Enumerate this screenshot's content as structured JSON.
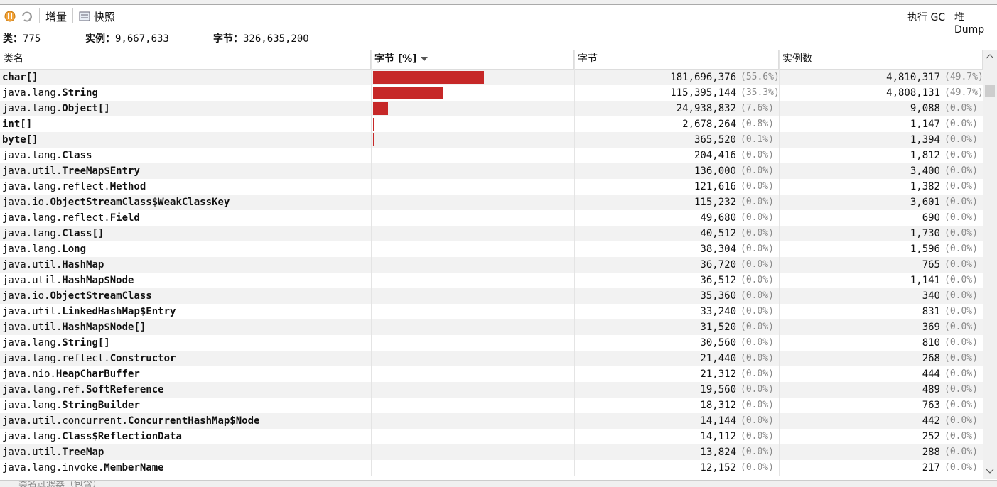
{
  "toolbar": {
    "delta": "增量",
    "snapshot": "快照",
    "gc": "执行 GC",
    "heap_dump": "堆 Dump"
  },
  "stats": {
    "classes_label": "类：",
    "classes": "775",
    "instances_label": "实例：",
    "instances": "9,667,633",
    "bytes_label": "字节：",
    "bytes": "326,635,200"
  },
  "table": {
    "headers": {
      "name": "类名",
      "bar": "字节 [%]",
      "bytes": "字节",
      "instances": "实例数"
    },
    "rows": [
      {
        "cls": "char[]",
        "bytes": "181,696,376",
        "pct": {
          "value": 55.6,
          "label": "(55.6%)"
        },
        "inst": "4,810,317",
        "inst_pct": "(49.7%)"
      },
      {
        "pkg": "java.lang.",
        "cls": "String",
        "bytes": "115,395,144",
        "pct": {
          "value": 35.3,
          "label": "(35.3%)"
        },
        "inst": "4,808,131",
        "inst_pct": "(49.7%)"
      },
      {
        "pkg": "java.lang.",
        "cls": "Object[]",
        "bytes": "24,938,832",
        "pct": {
          "value": 7.6,
          "label": "(7.6%)"
        },
        "inst": "9,088",
        "inst_pct": "(0.0%)"
      },
      {
        "cls": "int[]",
        "bytes": "2,678,264",
        "pct": {
          "value": 0.8,
          "label": "(0.8%)"
        },
        "inst": "1,147",
        "inst_pct": "(0.0%)"
      },
      {
        "cls": "byte[]",
        "bytes": "365,520",
        "pct": {
          "value": 0.1,
          "label": "(0.1%)"
        },
        "inst": "1,394",
        "inst_pct": "(0.0%)"
      },
      {
        "pkg": "java.lang.",
        "cls": "Class",
        "bytes": "204,416",
        "pct": {
          "value": 0.0,
          "label": "(0.0%)"
        },
        "inst": "1,812",
        "inst_pct": "(0.0%)"
      },
      {
        "pkg": "java.util.",
        "cls": "TreeMap$Entry",
        "bytes": "136,000",
        "pct": {
          "value": 0.0,
          "label": "(0.0%)"
        },
        "inst": "3,400",
        "inst_pct": "(0.0%)"
      },
      {
        "pkg": "java.lang.reflect.",
        "cls": "Method",
        "bytes": "121,616",
        "pct": {
          "value": 0.0,
          "label": "(0.0%)"
        },
        "inst": "1,382",
        "inst_pct": "(0.0%)"
      },
      {
        "pkg": "java.io.",
        "cls": "ObjectStreamClass$WeakClassKey",
        "bytes": "115,232",
        "pct": {
          "value": 0.0,
          "label": "(0.0%)"
        },
        "inst": "3,601",
        "inst_pct": "(0.0%)"
      },
      {
        "pkg": "java.lang.reflect.",
        "cls": "Field",
        "bytes": "49,680",
        "pct": {
          "value": 0.0,
          "label": "(0.0%)"
        },
        "inst": "690",
        "inst_pct": "(0.0%)"
      },
      {
        "pkg": "java.lang.",
        "cls": "Class[]",
        "bytes": "40,512",
        "pct": {
          "value": 0.0,
          "label": "(0.0%)"
        },
        "inst": "1,730",
        "inst_pct": "(0.0%)"
      },
      {
        "pkg": "java.lang.",
        "cls": "Long",
        "bytes": "38,304",
        "pct": {
          "value": 0.0,
          "label": "(0.0%)"
        },
        "inst": "1,596",
        "inst_pct": "(0.0%)"
      },
      {
        "pkg": "java.util.",
        "cls": "HashMap",
        "bytes": "36,720",
        "pct": {
          "value": 0.0,
          "label": "(0.0%)"
        },
        "inst": "765",
        "inst_pct": "(0.0%)"
      },
      {
        "pkg": "java.util.",
        "cls": "HashMap$Node",
        "bytes": "36,512",
        "pct": {
          "value": 0.0,
          "label": "(0.0%)"
        },
        "inst": "1,141",
        "inst_pct": "(0.0%)"
      },
      {
        "pkg": "java.io.",
        "cls": "ObjectStreamClass",
        "bytes": "35,360",
        "pct": {
          "value": 0.0,
          "label": "(0.0%)"
        },
        "inst": "340",
        "inst_pct": "(0.0%)"
      },
      {
        "pkg": "java.util.",
        "cls": "LinkedHashMap$Entry",
        "bytes": "33,240",
        "pct": {
          "value": 0.0,
          "label": "(0.0%)"
        },
        "inst": "831",
        "inst_pct": "(0.0%)"
      },
      {
        "pkg": "java.util.",
        "cls": "HashMap$Node[]",
        "bytes": "31,520",
        "pct": {
          "value": 0.0,
          "label": "(0.0%)"
        },
        "inst": "369",
        "inst_pct": "(0.0%)"
      },
      {
        "pkg": "java.lang.",
        "cls": "String[]",
        "bytes": "30,560",
        "pct": {
          "value": 0.0,
          "label": "(0.0%)"
        },
        "inst": "810",
        "inst_pct": "(0.0%)"
      },
      {
        "pkg": "java.lang.reflect.",
        "cls": "Constructor",
        "bytes": "21,440",
        "pct": {
          "value": 0.0,
          "label": "(0.0%)"
        },
        "inst": "268",
        "inst_pct": "(0.0%)"
      },
      {
        "pkg": "java.nio.",
        "cls": "HeapCharBuffer",
        "bytes": "21,312",
        "pct": {
          "value": 0.0,
          "label": "(0.0%)"
        },
        "inst": "444",
        "inst_pct": "(0.0%)"
      },
      {
        "pkg": "java.lang.ref.",
        "cls": "SoftReference",
        "bytes": "19,560",
        "pct": {
          "value": 0.0,
          "label": "(0.0%)"
        },
        "inst": "489",
        "inst_pct": "(0.0%)"
      },
      {
        "pkg": "java.lang.",
        "cls": "StringBuilder",
        "bytes": "18,312",
        "pct": {
          "value": 0.0,
          "label": "(0.0%)"
        },
        "inst": "763",
        "inst_pct": "(0.0%)"
      },
      {
        "pkg": "java.util.concurrent.",
        "cls": "ConcurrentHashMap$Node",
        "bytes": "14,144",
        "pct": {
          "value": 0.0,
          "label": "(0.0%)"
        },
        "inst": "442",
        "inst_pct": "(0.0%)"
      },
      {
        "pkg": "java.lang.",
        "cls": "Class$ReflectionData",
        "bytes": "14,112",
        "pct": {
          "value": 0.0,
          "label": "(0.0%)"
        },
        "inst": "252",
        "inst_pct": "(0.0%)"
      },
      {
        "pkg": "java.util.",
        "cls": "TreeMap",
        "bytes": "13,824",
        "pct": {
          "value": 0.0,
          "label": "(0.0%)"
        },
        "inst": "288",
        "inst_pct": "(0.0%)"
      },
      {
        "pkg": "java.lang.invoke.",
        "cls": "MemberName",
        "bytes": "12,152",
        "pct": {
          "value": 0.0,
          "label": "(0.0%)"
        },
        "inst": "217",
        "inst_pct": "(0.0%)"
      }
    ]
  },
  "filter": "类名过滤器（包含）"
}
